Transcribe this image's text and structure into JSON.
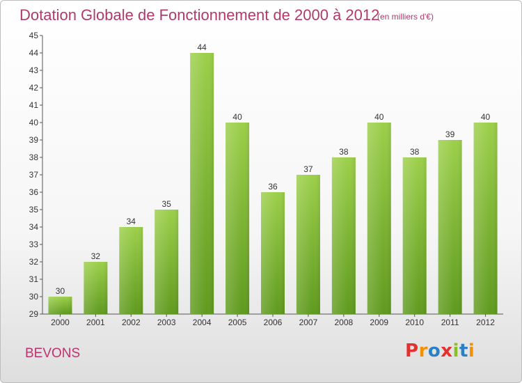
{
  "header": {
    "title": "Dotation Globale de Fonctionnement de 2000 à 2012",
    "unit": "(en milliers d'€)"
  },
  "commune": "BEVONS",
  "logo": {
    "text": "Proxiti",
    "letters": [
      "P",
      "r",
      "o",
      "x",
      "i",
      "t",
      "i"
    ],
    "colors": [
      "#e2312f",
      "#f39200",
      "#2b7fc3",
      "#e2312f",
      "#8cbf26",
      "#2b7fc3",
      "#f39200"
    ]
  },
  "colors": {
    "bar_light": "#9ccf4a",
    "bar_dark": "#5f9a1e",
    "title": "#b03a6a"
  },
  "chart_data": {
    "type": "bar",
    "categories": [
      "2000",
      "2001",
      "2002",
      "2003",
      "2004",
      "2005",
      "2006",
      "2007",
      "2008",
      "2009",
      "2010",
      "2011",
      "2012"
    ],
    "values": [
      30,
      32,
      34,
      35,
      44,
      40,
      36,
      37,
      38,
      40,
      38,
      39,
      40
    ],
    "title": "Dotation Globale de Fonctionnement de 2000 à 2012",
    "ylim": [
      29,
      45
    ],
    "yticks": [
      29,
      30,
      31,
      32,
      33,
      34,
      35,
      36,
      37,
      38,
      39,
      40,
      41,
      42,
      43,
      44,
      45
    ],
    "grid": false,
    "data_labels": true
  }
}
